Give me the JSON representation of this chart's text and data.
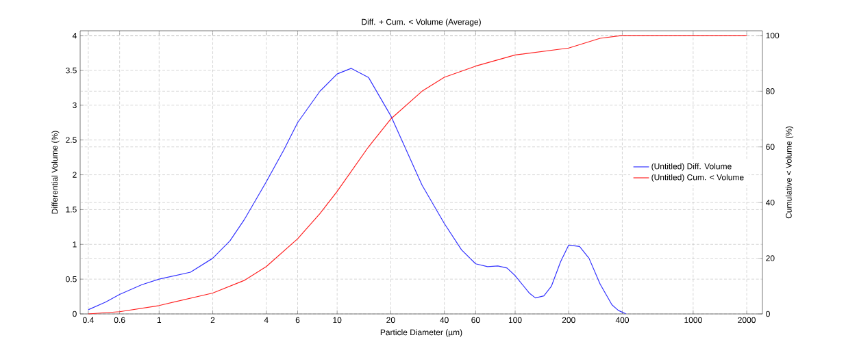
{
  "chart_data": {
    "type": "line",
    "title": "Diff. + Cum. < Volume (Average)",
    "xlabel": "Particle Diameter (µm)",
    "ylabel": "Differential Volume (%)",
    "y2label": "Cumulative < Volume (%)",
    "log": "x",
    "grid": true,
    "legend": "right",
    "marker": "none",
    "line_style": "solid",
    "xlim": [
      0.36,
      2450
    ],
    "xticks": [
      0.4,
      0.6,
      1,
      2,
      4,
      6,
      10,
      20,
      40,
      60,
      100,
      200,
      400,
      1000,
      2000
    ],
    "ylim": [
      0,
      4.07
    ],
    "yticks": [
      0,
      0.5,
      1,
      1.5,
      2,
      2.5,
      3,
      3.5,
      4
    ],
    "y2lim": [
      0,
      101.7
    ],
    "y2ticks": [
      0,
      20,
      40,
      60,
      80,
      100
    ],
    "series": [
      {
        "name": "(Untitled) Diff. Volume",
        "color": "#3333ff",
        "x": [
          0.4,
          0.5,
          0.6,
          0.8,
          1,
          1.5,
          2,
          2.5,
          3,
          4,
          5,
          6,
          8,
          10,
          12,
          15,
          20,
          25,
          30,
          40,
          50,
          60,
          70,
          80,
          90,
          100,
          120,
          130,
          145,
          160,
          180,
          200,
          230,
          260,
          300,
          350,
          380,
          420
        ],
        "values": [
          0.06,
          0.17,
          0.28,
          0.42,
          0.5,
          0.6,
          0.8,
          1.05,
          1.35,
          1.9,
          2.35,
          2.75,
          3.2,
          3.45,
          3.53,
          3.4,
          2.85,
          2.3,
          1.85,
          1.3,
          0.92,
          0.72,
          0.68,
          0.69,
          0.66,
          0.55,
          0.3,
          0.23,
          0.26,
          0.4,
          0.75,
          0.99,
          0.97,
          0.8,
          0.43,
          0.13,
          0.05,
          0
        ]
      },
      {
        "name": "(Untitled) Cum. < Volume",
        "color": "#ff2020",
        "axis": "y2",
        "x": [
          0.4,
          0.6,
          1,
          2,
          3,
          4,
          6,
          8,
          10,
          15,
          20,
          30,
          40,
          60,
          100,
          200,
          300,
          400,
          2000
        ],
        "values": [
          0,
          0.8,
          3,
          7.5,
          12,
          17,
          27,
          36,
          44,
          60,
          70,
          80,
          85,
          89,
          93,
          95.5,
          99,
          100,
          100
        ]
      }
    ]
  }
}
